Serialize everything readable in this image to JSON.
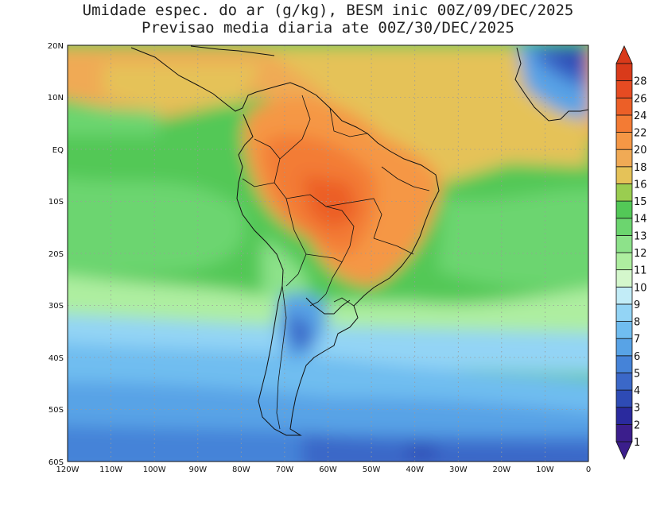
{
  "title": {
    "line1": "Umidade espec. do ar (g/kg), BESM inic 00Z/09/DEC/2025",
    "line2": "Previsao media diaria ate 00Z/30/DEC/2025"
  },
  "axes": {
    "lon_labels": [
      "120W",
      "110W",
      "100W",
      "90W",
      "80W",
      "70W",
      "60W",
      "50W",
      "40W",
      "30W",
      "20W",
      "10W",
      "0"
    ],
    "lat_labels": [
      "20N",
      "10N",
      "EQ",
      "10S",
      "20S",
      "30S",
      "40S",
      "50S",
      "60S"
    ],
    "lon_range": [
      -120,
      0
    ],
    "lat_range": [
      -60,
      20
    ]
  },
  "colorbar": {
    "levels": [
      "1",
      "2",
      "3",
      "4",
      "5",
      "6",
      "7",
      "8",
      "9",
      "10",
      "11",
      "12",
      "13",
      "14",
      "15",
      "16",
      "18",
      "20",
      "22",
      "24",
      "26",
      "28"
    ],
    "colors": [
      "#3b1e8c",
      "#2a2a9e",
      "#2e4bb5",
      "#3b68c8",
      "#4583d8",
      "#58a3e6",
      "#70bdf0",
      "#93d4f5",
      "#c2ecf7",
      "#d4f7cc",
      "#aeeea0",
      "#8de28a",
      "#6cd56f",
      "#53c857",
      "#9acd50",
      "#e5c258",
      "#f0aa55",
      "#f59745",
      "#f37b34",
      "#ec5f27",
      "#e64b22",
      "#d93a1a"
    ],
    "overflow": "extends both ends"
  },
  "map": {
    "region": "South America and adjacent Atlantic/Pacific",
    "grid": "dotted every 10 degrees"
  }
}
